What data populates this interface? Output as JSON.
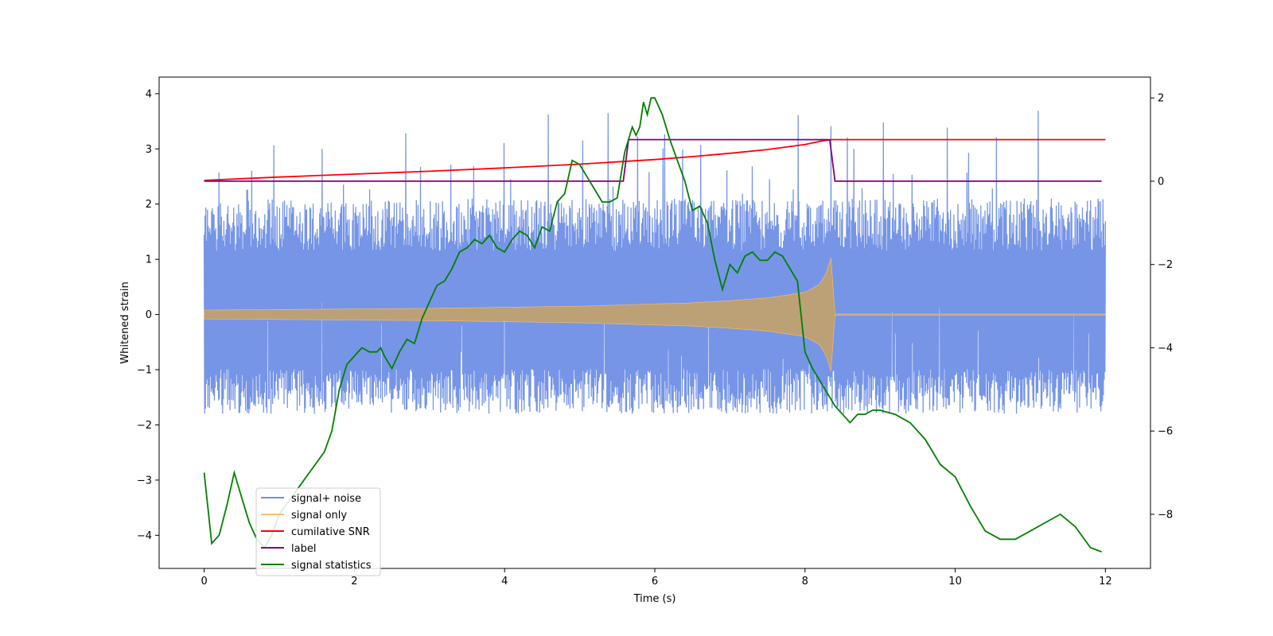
{
  "chart_data": {
    "type": "line",
    "title": "",
    "xlabel": "Time (s)",
    "ylabel": "Whitened strain",
    "y2label": "",
    "xlim": [
      -0.6,
      12.6
    ],
    "ylim": [
      -4.6,
      4.3
    ],
    "y2lim": [
      -9.3,
      2.5
    ],
    "xticks": [
      0,
      2,
      4,
      6,
      8,
      10,
      12
    ],
    "yticks": [
      -4,
      -3,
      -2,
      -1,
      0,
      1,
      2,
      3,
      4
    ],
    "y2ticks": [
      -8,
      -6,
      -4,
      -2,
      0,
      2
    ],
    "grid": false,
    "legend_position": "lower-left",
    "colors": {
      "signal_noise": "#6f8fe6",
      "signal_only": "#ffbf66",
      "cumulative_snr": "#ff0000",
      "label": "#800080",
      "signal_statistics": "#008000"
    },
    "series": [
      {
        "name": "signal+ noise",
        "axis": "left",
        "kind": "noise-band",
        "t_range": [
          0,
          12
        ],
        "typical_range": [
          -1.8,
          2.1
        ],
        "peak_range": [
          -3.9,
          3.9
        ]
      },
      {
        "name": "signal only",
        "axis": "left",
        "kind": "chirp-envelope",
        "envelope_t": [
          0,
          1,
          2,
          3,
          4,
          5,
          6,
          6.5,
          7,
          7.5,
          8,
          8.2,
          8.3,
          8.36,
          8.4,
          12
        ],
        "envelope_amp": [
          0.08,
          0.09,
          0.1,
          0.11,
          0.13,
          0.15,
          0.19,
          0.21,
          0.25,
          0.3,
          0.4,
          0.55,
          0.8,
          1.1,
          0.01,
          0.01
        ]
      },
      {
        "name": "cumilative SNR",
        "axis": "right",
        "t": [
          0,
          1,
          2,
          3,
          4,
          5,
          6,
          6.5,
          7,
          7.5,
          8,
          8.2,
          8.35,
          8.4,
          12
        ],
        "values": [
          0.02,
          0.1,
          0.17,
          0.24,
          0.32,
          0.41,
          0.52,
          0.59,
          0.67,
          0.76,
          0.88,
          0.96,
          1.0,
          1.0,
          1.0
        ]
      },
      {
        "name": "label",
        "axis": "right",
        "t": [
          0,
          5.58,
          5.65,
          8.33,
          8.4,
          11.95
        ],
        "values": [
          0,
          0,
          1,
          1,
          0,
          0
        ]
      },
      {
        "name": "signal statistics",
        "axis": "right",
        "t": [
          0,
          0.1,
          0.2,
          0.3,
          0.4,
          0.5,
          0.6,
          0.7,
          0.8,
          0.9,
          1.0,
          1.2,
          1.4,
          1.6,
          1.7,
          1.8,
          1.9,
          2.0,
          2.1,
          2.2,
          2.3,
          2.35,
          2.4,
          2.5,
          2.6,
          2.7,
          2.8,
          2.9,
          3.0,
          3.1,
          3.2,
          3.3,
          3.4,
          3.5,
          3.6,
          3.7,
          3.8,
          3.9,
          4.0,
          4.1,
          4.2,
          4.3,
          4.4,
          4.5,
          4.6,
          4.7,
          4.8,
          4.9,
          5.0,
          5.1,
          5.2,
          5.3,
          5.4,
          5.5,
          5.6,
          5.7,
          5.75,
          5.8,
          5.85,
          5.9,
          5.95,
          6.0,
          6.1,
          6.2,
          6.3,
          6.4,
          6.5,
          6.6,
          6.7,
          6.8,
          6.9,
          7.0,
          7.1,
          7.2,
          7.3,
          7.4,
          7.5,
          7.6,
          7.7,
          7.8,
          7.9,
          8.0,
          8.1,
          8.2,
          8.3,
          8.4,
          8.5,
          8.6,
          8.7,
          8.8,
          8.9,
          9.0,
          9.2,
          9.4,
          9.6,
          9.8,
          10.0,
          10.2,
          10.4,
          10.6,
          10.8,
          11.0,
          11.2,
          11.4,
          11.6,
          11.8,
          11.95
        ],
        "values": [
          -7.0,
          -8.7,
          -8.5,
          -7.8,
          -7.0,
          -7.6,
          -8.2,
          -8.6,
          -8.8,
          -8.5,
          -8.0,
          -7.5,
          -7.0,
          -6.5,
          -6.0,
          -5.0,
          -4.4,
          -4.2,
          -4.0,
          -4.1,
          -4.1,
          -4.0,
          -4.2,
          -4.5,
          -4.1,
          -3.8,
          -3.9,
          -3.3,
          -2.9,
          -2.5,
          -2.4,
          -2.1,
          -1.7,
          -1.6,
          -1.4,
          -1.5,
          -1.3,
          -1.6,
          -1.7,
          -1.4,
          -1.2,
          -1.3,
          -1.6,
          -1.1,
          -1.2,
          -0.5,
          -0.3,
          0.5,
          0.4,
          0.1,
          -0.2,
          -0.5,
          -0.5,
          -0.4,
          0.7,
          1.3,
          1.1,
          1.3,
          1.9,
          1.6,
          2.0,
          2.0,
          1.6,
          1.0,
          0.5,
          0.0,
          -0.7,
          -0.6,
          -1.0,
          -1.9,
          -2.6,
          -2.0,
          -2.2,
          -1.8,
          -1.7,
          -1.9,
          -1.9,
          -1.7,
          -1.8,
          -2.1,
          -2.4,
          -4.1,
          -4.5,
          -4.8,
          -5.1,
          -5.4,
          -5.6,
          -5.8,
          -5.6,
          -5.6,
          -5.5,
          -5.5,
          -5.6,
          -5.8,
          -6.2,
          -6.8,
          -7.1,
          -7.8,
          -8.4,
          -8.6,
          -8.6,
          -8.4,
          -8.2,
          -8.0,
          -8.3,
          -8.8,
          -8.9
        ]
      }
    ]
  }
}
